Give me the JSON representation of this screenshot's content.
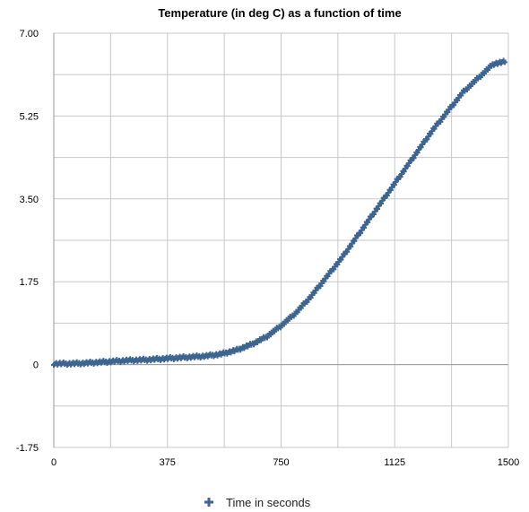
{
  "chart_data": {
    "type": "scatter",
    "title": "Temperature (in deg C) as a function of time",
    "xlabel": "",
    "ylabel": "",
    "xlim": [
      0,
      1500
    ],
    "ylim": [
      -1.75,
      7.0
    ],
    "x_ticks": [
      0,
      375,
      750,
      1125,
      1500
    ],
    "x_tick_labels": [
      "0",
      "375",
      "750",
      "1125",
      "1500"
    ],
    "y_ticks": [
      -1.75,
      0,
      1.75,
      3.5,
      5.25,
      7.0
    ],
    "y_tick_labels": [
      "-1.75",
      "0",
      "1.75",
      "3.50",
      "5.25",
      "7.00"
    ],
    "grid": true,
    "legend": {
      "position": "bottom",
      "entries": [
        "Time in seconds"
      ]
    },
    "series": [
      {
        "name": "Time in seconds",
        "color": "#3d6590",
        "marker": "plus",
        "x": [
          0,
          50,
          100,
          150,
          200,
          250,
          300,
          350,
          400,
          450,
          500,
          550,
          600,
          650,
          700,
          750,
          800,
          850,
          900,
          950,
          1000,
          1050,
          1100,
          1150,
          1200,
          1250,
          1300,
          1350,
          1400,
          1450,
          1490
        ],
        "y": [
          0.02,
          0.02,
          0.03,
          0.05,
          0.07,
          0.09,
          0.1,
          0.12,
          0.14,
          0.16,
          0.18,
          0.22,
          0.3,
          0.42,
          0.58,
          0.82,
          1.1,
          1.45,
          1.85,
          2.25,
          2.7,
          3.15,
          3.6,
          4.05,
          4.5,
          4.95,
          5.35,
          5.75,
          6.05,
          6.35,
          6.4
        ]
      }
    ]
  }
}
